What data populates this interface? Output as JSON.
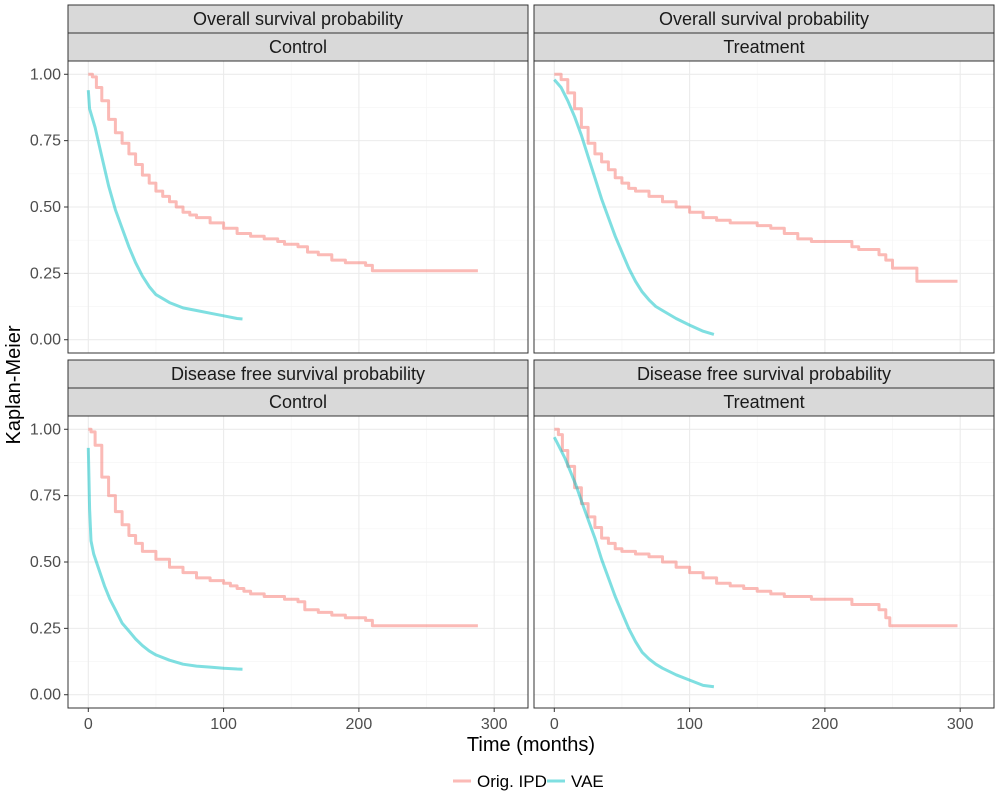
{
  "chart_data": {
    "type": "line",
    "xlabel": "Time (months)",
    "ylabel": "Kaplan-Meier",
    "xlim": [
      -15,
      325
    ],
    "ylim": [
      -0.05,
      1.05
    ],
    "x_ticks": [
      0,
      100,
      200,
      300
    ],
    "x_tick_labels": [
      "0",
      "100",
      "200",
      "300"
    ],
    "y_ticks": [
      0,
      0.25,
      0.5,
      0.75,
      1.0
    ],
    "y_tick_labels": [
      "0.00",
      "0.25",
      "0.50",
      "0.75",
      "1.00"
    ],
    "grid": true,
    "legend_position": "bottom",
    "legend": [
      {
        "name": "Orig. IPD",
        "color": "#f8766d"
      },
      {
        "name": "VAE",
        "color": "#00bfc4"
      }
    ],
    "panels": [
      {
        "outcome": "Overall survival probability",
        "group": "Control",
        "series": [
          {
            "name": "Orig. IPD",
            "step": true,
            "points": [
              [
                0,
                1.0
              ],
              [
                3,
                0.99
              ],
              [
                6,
                0.95
              ],
              [
                10,
                0.9
              ],
              [
                15,
                0.83
              ],
              [
                20,
                0.78
              ],
              [
                25,
                0.74
              ],
              [
                30,
                0.7
              ],
              [
                35,
                0.66
              ],
              [
                40,
                0.62
              ],
              [
                45,
                0.59
              ],
              [
                50,
                0.56
              ],
              [
                55,
                0.54
              ],
              [
                60,
                0.52
              ],
              [
                65,
                0.5
              ],
              [
                70,
                0.48
              ],
              [
                75,
                0.47
              ],
              [
                80,
                0.46
              ],
              [
                90,
                0.44
              ],
              [
                100,
                0.42
              ],
              [
                110,
                0.4
              ],
              [
                120,
                0.39
              ],
              [
                130,
                0.38
              ],
              [
                140,
                0.37
              ],
              [
                145,
                0.36
              ],
              [
                155,
                0.35
              ],
              [
                162,
                0.33
              ],
              [
                170,
                0.32
              ],
              [
                180,
                0.3
              ],
              [
                190,
                0.29
              ],
              [
                200,
                0.29
              ],
              [
                205,
                0.28
              ],
              [
                210,
                0.26
              ],
              [
                288,
                0.26
              ]
            ]
          },
          {
            "name": "VAE",
            "step": false,
            "points": [
              [
                0,
                0.94
              ],
              [
                1,
                0.87
              ],
              [
                5,
                0.8
              ],
              [
                10,
                0.69
              ],
              [
                15,
                0.58
              ],
              [
                20,
                0.49
              ],
              [
                25,
                0.42
              ],
              [
                30,
                0.35
              ],
              [
                35,
                0.29
              ],
              [
                40,
                0.24
              ],
              [
                45,
                0.2
              ],
              [
                50,
                0.17
              ],
              [
                55,
                0.155
              ],
              [
                60,
                0.14
              ],
              [
                70,
                0.12
              ],
              [
                80,
                0.11
              ],
              [
                90,
                0.1
              ],
              [
                100,
                0.09
              ],
              [
                110,
                0.08
              ],
              [
                114,
                0.078
              ]
            ]
          }
        ]
      },
      {
        "outcome": "Overall survival probability",
        "group": "Treatment",
        "series": [
          {
            "name": "Orig. IPD",
            "step": true,
            "points": [
              [
                0,
                1.0
              ],
              [
                5,
                0.98
              ],
              [
                10,
                0.93
              ],
              [
                15,
                0.87
              ],
              [
                20,
                0.8
              ],
              [
                25,
                0.74
              ],
              [
                30,
                0.7
              ],
              [
                35,
                0.67
              ],
              [
                40,
                0.64
              ],
              [
                45,
                0.61
              ],
              [
                50,
                0.59
              ],
              [
                55,
                0.57
              ],
              [
                60,
                0.56
              ],
              [
                70,
                0.54
              ],
              [
                80,
                0.52
              ],
              [
                90,
                0.5
              ],
              [
                100,
                0.48
              ],
              [
                110,
                0.46
              ],
              [
                120,
                0.45
              ],
              [
                130,
                0.44
              ],
              [
                150,
                0.43
              ],
              [
                160,
                0.42
              ],
              [
                170,
                0.4
              ],
              [
                180,
                0.38
              ],
              [
                190,
                0.37
              ],
              [
                215,
                0.37
              ],
              [
                220,
                0.35
              ],
              [
                225,
                0.34
              ],
              [
                240,
                0.32
              ],
              [
                245,
                0.3
              ],
              [
                250,
                0.27
              ],
              [
                268,
                0.27
              ],
              [
                268,
                0.22
              ],
              [
                298,
                0.22
              ]
            ]
          },
          {
            "name": "VAE",
            "step": false,
            "points": [
              [
                0,
                0.98
              ],
              [
                5,
                0.95
              ],
              [
                10,
                0.9
              ],
              [
                15,
                0.84
              ],
              [
                20,
                0.77
              ],
              [
                25,
                0.69
              ],
              [
                30,
                0.61
              ],
              [
                35,
                0.53
              ],
              [
                40,
                0.46
              ],
              [
                45,
                0.39
              ],
              [
                50,
                0.33
              ],
              [
                55,
                0.27
              ],
              [
                60,
                0.22
              ],
              [
                65,
                0.18
              ],
              [
                70,
                0.15
              ],
              [
                75,
                0.125
              ],
              [
                80,
                0.11
              ],
              [
                90,
                0.08
              ],
              [
                100,
                0.055
              ],
              [
                110,
                0.032
              ],
              [
                118,
                0.02
              ]
            ]
          }
        ]
      },
      {
        "outcome": "Disease free survival probability",
        "group": "Control",
        "series": [
          {
            "name": "Orig. IPD",
            "step": true,
            "points": [
              [
                0,
                1.0
              ],
              [
                2,
                0.99
              ],
              [
                5,
                0.94
              ],
              [
                10,
                0.82
              ],
              [
                15,
                0.75
              ],
              [
                20,
                0.69
              ],
              [
                25,
                0.64
              ],
              [
                30,
                0.6
              ],
              [
                35,
                0.57
              ],
              [
                40,
                0.54
              ],
              [
                50,
                0.51
              ],
              [
                60,
                0.48
              ],
              [
                70,
                0.46
              ],
              [
                80,
                0.44
              ],
              [
                90,
                0.43
              ],
              [
                100,
                0.42
              ],
              [
                105,
                0.41
              ],
              [
                110,
                0.4
              ],
              [
                115,
                0.39
              ],
              [
                120,
                0.38
              ],
              [
                130,
                0.37
              ],
              [
                140,
                0.37
              ],
              [
                145,
                0.36
              ],
              [
                155,
                0.35
              ],
              [
                160,
                0.32
              ],
              [
                170,
                0.31
              ],
              [
                180,
                0.3
              ],
              [
                190,
                0.29
              ],
              [
                200,
                0.29
              ],
              [
                205,
                0.28
              ],
              [
                210,
                0.26
              ],
              [
                288,
                0.26
              ]
            ]
          },
          {
            "name": "VAE",
            "step": false,
            "points": [
              [
                0,
                0.93
              ],
              [
                1,
                0.7
              ],
              [
                2,
                0.58
              ],
              [
                4,
                0.53
              ],
              [
                8,
                0.47
              ],
              [
                12,
                0.41
              ],
              [
                16,
                0.36
              ],
              [
                20,
                0.32
              ],
              [
                25,
                0.27
              ],
              [
                30,
                0.24
              ],
              [
                35,
                0.21
              ],
              [
                40,
                0.185
              ],
              [
                45,
                0.165
              ],
              [
                50,
                0.15
              ],
              [
                60,
                0.13
              ],
              [
                70,
                0.115
              ],
              [
                80,
                0.108
              ],
              [
                90,
                0.104
              ],
              [
                100,
                0.1
              ],
              [
                110,
                0.097
              ],
              [
                114,
                0.096
              ]
            ]
          }
        ]
      },
      {
        "outcome": "Disease free survival probability",
        "group": "Treatment",
        "series": [
          {
            "name": "Orig. IPD",
            "step": true,
            "points": [
              [
                0,
                1.0
              ],
              [
                3,
                0.98
              ],
              [
                6,
                0.92
              ],
              [
                10,
                0.86
              ],
              [
                15,
                0.78
              ],
              [
                20,
                0.72
              ],
              [
                25,
                0.67
              ],
              [
                30,
                0.63
              ],
              [
                35,
                0.59
              ],
              [
                40,
                0.57
              ],
              [
                45,
                0.55
              ],
              [
                50,
                0.54
              ],
              [
                60,
                0.53
              ],
              [
                70,
                0.52
              ],
              [
                80,
                0.5
              ],
              [
                90,
                0.48
              ],
              [
                100,
                0.46
              ],
              [
                110,
                0.44
              ],
              [
                120,
                0.42
              ],
              [
                130,
                0.41
              ],
              [
                140,
                0.4
              ],
              [
                150,
                0.39
              ],
              [
                160,
                0.38
              ],
              [
                170,
                0.37
              ],
              [
                180,
                0.37
              ],
              [
                190,
                0.36
              ],
              [
                215,
                0.36
              ],
              [
                220,
                0.34
              ],
              [
                230,
                0.34
              ],
              [
                240,
                0.32
              ],
              [
                245,
                0.29
              ],
              [
                248,
                0.26
              ],
              [
                298,
                0.26
              ]
            ]
          },
          {
            "name": "VAE",
            "step": false,
            "points": [
              [
                0,
                0.97
              ],
              [
                3,
                0.94
              ],
              [
                8,
                0.89
              ],
              [
                12,
                0.84
              ],
              [
                16,
                0.79
              ],
              [
                20,
                0.73
              ],
              [
                25,
                0.66
              ],
              [
                30,
                0.59
              ],
              [
                35,
                0.51
              ],
              [
                40,
                0.44
              ],
              [
                45,
                0.37
              ],
              [
                50,
                0.31
              ],
              [
                55,
                0.25
              ],
              [
                60,
                0.2
              ],
              [
                65,
                0.16
              ],
              [
                70,
                0.135
              ],
              [
                75,
                0.115
              ],
              [
                80,
                0.1
              ],
              [
                90,
                0.075
              ],
              [
                100,
                0.055
              ],
              [
                110,
                0.035
              ],
              [
                118,
                0.03
              ]
            ]
          }
        ]
      }
    ]
  }
}
